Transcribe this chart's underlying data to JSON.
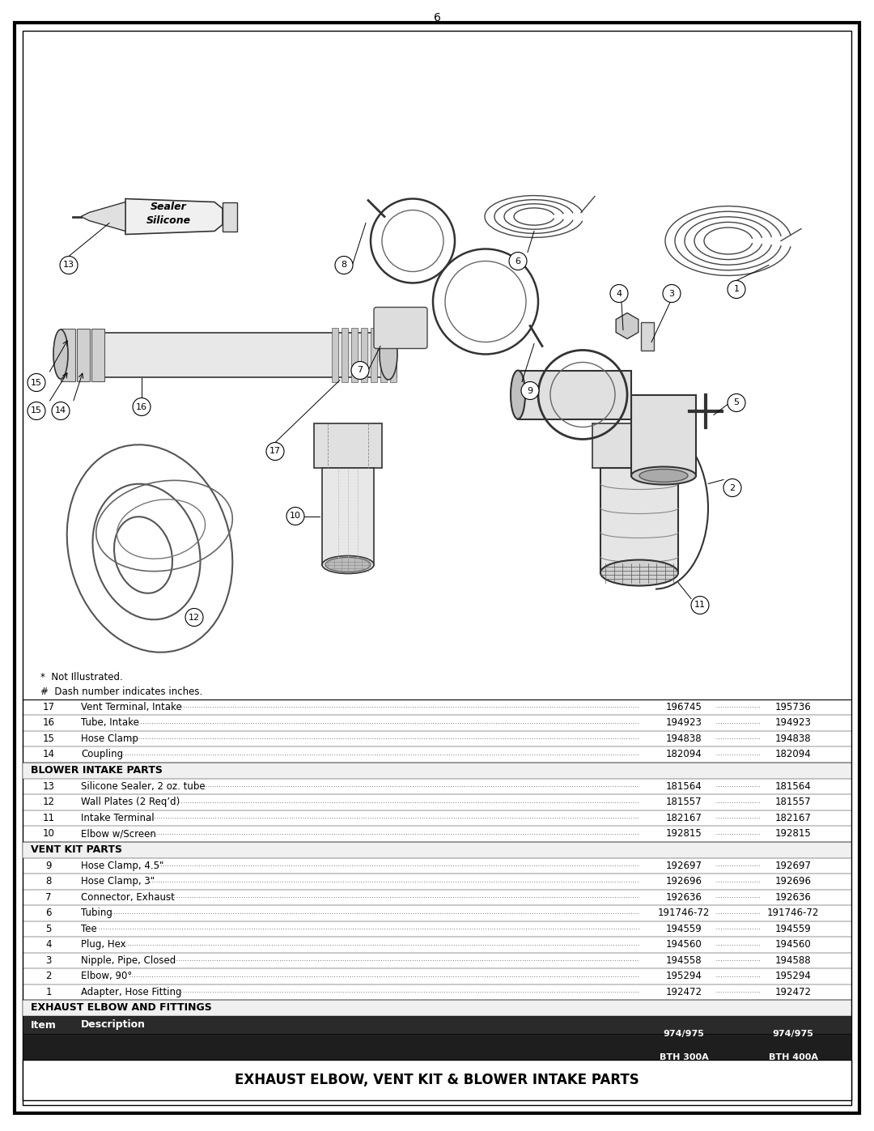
{
  "title": "EXHAUST ELBOW, VENT KIT & BLOWER INTAKE PARTS",
  "rows": [
    {
      "item": "1",
      "desc": "Adapter, Hose Fitting",
      "part1": "192472",
      "part2": "192472",
      "section": null
    },
    {
      "item": "2",
      "desc": "Elbow, 90°",
      "part1": "195294",
      "part2": "195294",
      "section": null
    },
    {
      "item": "3",
      "desc": "Nipple, Pipe, Closed",
      "part1": "194558",
      "part2": "194588",
      "section": null
    },
    {
      "item": "4",
      "desc": "Plug, Hex",
      "part1": "194560",
      "part2": "194560",
      "section": null
    },
    {
      "item": "5",
      "desc": "Tee",
      "part1": "194559",
      "part2": "194559",
      "section": null
    },
    {
      "item": "6",
      "desc": "Tubing",
      "part1": "191746-72",
      "part2": "191746-72",
      "section": null
    },
    {
      "item": "7",
      "desc": "Connector, Exhaust",
      "part1": "192636",
      "part2": "192636",
      "section": null
    },
    {
      "item": "8",
      "desc": "Hose Clamp, 3\"",
      "part1": "192696",
      "part2": "192696",
      "section": null
    },
    {
      "item": "9",
      "desc": "Hose Clamp, 4.5\"",
      "part1": "192697",
      "part2": "192697",
      "section": null
    },
    {
      "item": "10",
      "desc": "Elbow w/Screen",
      "part1": "192815",
      "part2": "192815",
      "section": null
    },
    {
      "item": "11",
      "desc": "Intake Terminal",
      "part1": "182167",
      "part2": "182167",
      "section": null
    },
    {
      "item": "12",
      "desc": "Wall Plates (2 Req’d)",
      "part1": "181557",
      "part2": "181557",
      "section": null
    },
    {
      "item": "13",
      "desc": "Silicone Sealer, 2 oz. tube",
      "part1": "181564",
      "part2": "181564",
      "section": null
    },
    {
      "item": "14",
      "desc": "Coupling",
      "part1": "182094",
      "part2": "182094",
      "section": null
    },
    {
      "item": "15",
      "desc": "Hose Clamp",
      "part1": "194838",
      "part2": "194838",
      "section": null
    },
    {
      "item": "16",
      "desc": "Tube, Intake",
      "part1": "194923",
      "part2": "194923",
      "section": null
    },
    {
      "item": "17",
      "desc": "Vent Terminal, Intake",
      "part1": "196745",
      "part2": "195736",
      "section": null
    }
  ],
  "sections": [
    {
      "label": "EXHAUST ELBOW AND FITTINGS",
      "before_row": 0
    },
    {
      "label": "VENT KIT PARTS",
      "before_row": 9
    },
    {
      "label": "BLOWER INTAKE PARTS",
      "before_row": 13
    }
  ],
  "footnotes": [
    "#  Dash number indicates inches.",
    "*  Not Illustrated."
  ],
  "page_number": "6"
}
